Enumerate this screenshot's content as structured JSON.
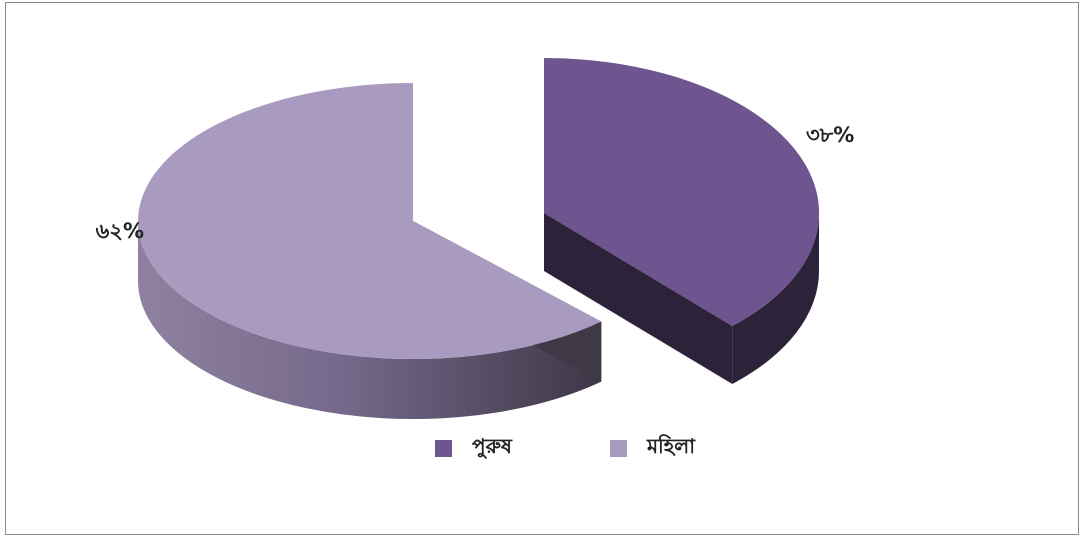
{
  "chart_data": {
    "type": "pie",
    "style": "3d-exploded",
    "categories": [
      "পুরুষ",
      "মহিলা"
    ],
    "values": [
      38,
      62
    ],
    "data_labels": [
      "৩৮%",
      "৬২%"
    ],
    "colors": [
      "#6F5590",
      "#A99ABF"
    ],
    "side_colors": [
      "#2C2239",
      "#9A8AAE"
    ],
    "legend_position": "bottom"
  }
}
